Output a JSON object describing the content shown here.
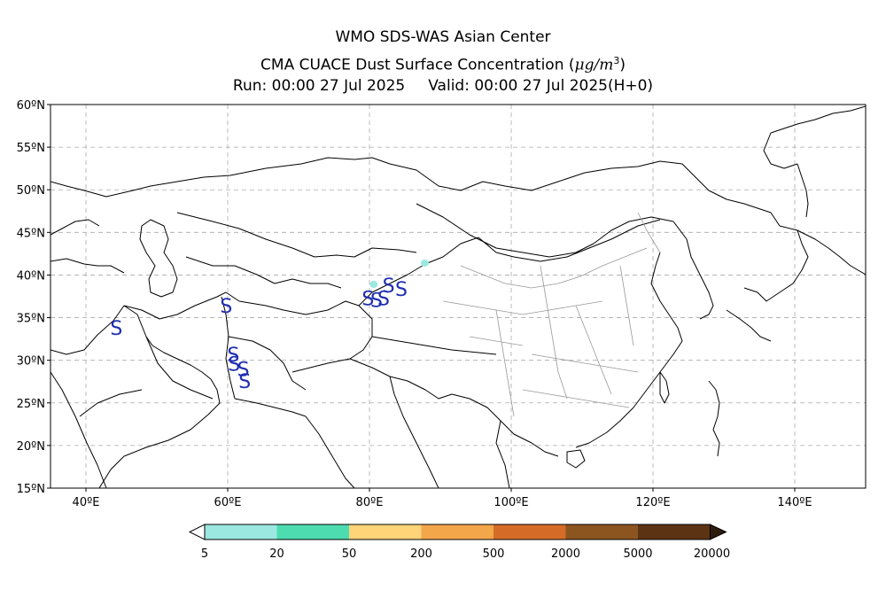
{
  "title": {
    "line1": "WMO SDS-WAS Asian Center",
    "line2_prefix": "CMA CUACE Dust Surface Concentration (",
    "line2_unit": "μg/m",
    "line2_sup": "3",
    "line2_suffix": ")",
    "run": "Run: 00:00 27 Jul 2025",
    "valid": "Valid: 00:00 27 Jul 2025(H+0)"
  },
  "map": {
    "lon_range": [
      35,
      150
    ],
    "lat_range": [
      15,
      60
    ],
    "lon_ticks": [
      {
        "value": 40,
        "label": "40ºE"
      },
      {
        "value": 60,
        "label": "60ºE"
      },
      {
        "value": 80,
        "label": "80ºE"
      },
      {
        "value": 100,
        "label": "100ºE"
      },
      {
        "value": 120,
        "label": "120ºE"
      },
      {
        "value": 140,
        "label": "140ºE"
      }
    ],
    "lat_ticks": [
      {
        "value": 15,
        "label": "15ºN"
      },
      {
        "value": 20,
        "label": "20ºN"
      },
      {
        "value": 25,
        "label": "25ºN"
      },
      {
        "value": 30,
        "label": "30ºN"
      },
      {
        "value": 35,
        "label": "35ºN"
      },
      {
        "value": 40,
        "label": "40ºN"
      },
      {
        "value": 45,
        "label": "45ºN"
      },
      {
        "value": 50,
        "label": "50ºN"
      },
      {
        "value": 55,
        "label": "55ºN"
      },
      {
        "value": 60,
        "label": "60ºN"
      }
    ],
    "grid": true,
    "weather_symbol": "S",
    "symbol_color": "#1f2fb0",
    "symbols": [
      {
        "lon": 44.3,
        "lat": 33.8
      },
      {
        "lon": 59.8,
        "lat": 36.4
      },
      {
        "lon": 60.8,
        "lat": 30.7
      },
      {
        "lon": 60.9,
        "lat": 29.6
      },
      {
        "lon": 62.2,
        "lat": 29.0
      },
      {
        "lon": 62.4,
        "lat": 27.6
      },
      {
        "lon": 79.8,
        "lat": 37.3
      },
      {
        "lon": 81.0,
        "lat": 37.1
      },
      {
        "lon": 82.0,
        "lat": 37.3
      },
      {
        "lon": 82.7,
        "lat": 38.8
      },
      {
        "lon": 84.5,
        "lat": 38.4
      }
    ],
    "dust_patches": [
      {
        "lon": 87.8,
        "lat": 41.4,
        "color": "#9be8e0"
      },
      {
        "lon": 80.6,
        "lat": 38.9,
        "color": "#9be8e0"
      }
    ]
  },
  "colorbar": {
    "colors": [
      "#9be8e0",
      "#4ddcb0",
      "#ffd478",
      "#f3a64a",
      "#d46c28",
      "#8c5520",
      "#5c3414",
      "#2d1c0e"
    ],
    "labels": [
      "5",
      "20",
      "50",
      "200",
      "500",
      "2000",
      "5000",
      "20000"
    ]
  }
}
